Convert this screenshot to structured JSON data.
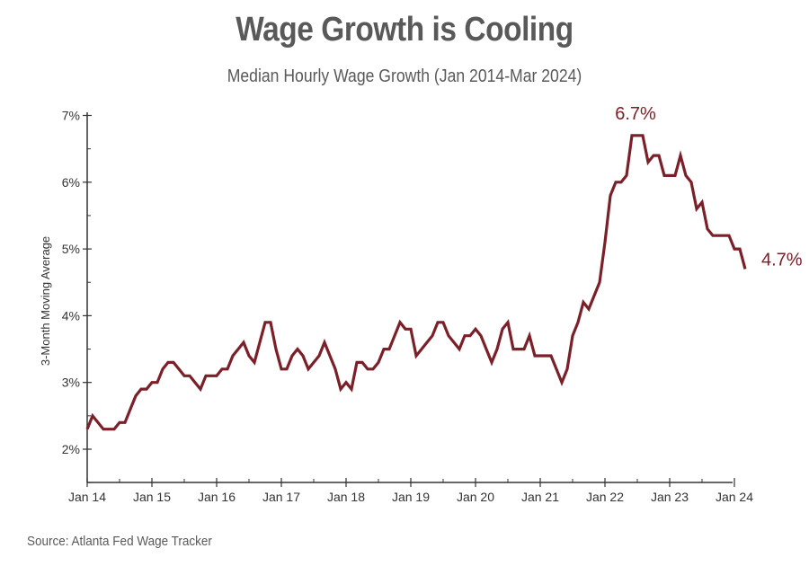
{
  "chart_data": {
    "type": "line",
    "title": "Wage Growth is Cooling",
    "subtitle": "Median Hourly Wage Growth (Jan 2014-Mar 2024)",
    "ylabel": "3-Month Moving Average",
    "xlabel": "",
    "source": "Source: Atlanta Fed Wage Tracker",
    "ylim": [
      1.5,
      7
    ],
    "yticks": [
      2,
      3,
      4,
      5,
      6,
      7
    ],
    "ytick_labels": [
      "2%",
      "3%",
      "4%",
      "5%",
      "6%",
      "7%"
    ],
    "xtick_labels": [
      "Jan 14",
      "Jan 15",
      "Jan 16",
      "Jan 17",
      "Jan 18",
      "Jan 19",
      "Jan 20",
      "Jan 21",
      "Jan 22",
      "Jan 23",
      "Jan 24"
    ],
    "x_start": "Jan 2014",
    "x_end": "Mar 2024",
    "grid": false,
    "line_color": "#7b2029",
    "series": [
      {
        "values": [
          2.3,
          2.5,
          2.4,
          2.3,
          2.3,
          2.3,
          2.4,
          2.4,
          2.6,
          2.8,
          2.9,
          2.9,
          3.0,
          3.0,
          3.2,
          3.3,
          3.3,
          3.2,
          3.1,
          3.1,
          3.0,
          2.9,
          3.1,
          3.1,
          3.1,
          3.2,
          3.2,
          3.4,
          3.5,
          3.6,
          3.4,
          3.3,
          3.6,
          3.9,
          3.9,
          3.5,
          3.2,
          3.2,
          3.4,
          3.5,
          3.4,
          3.2,
          3.3,
          3.4,
          3.6,
          3.4,
          3.2,
          2.9,
          3.0,
          2.9,
          3.3,
          3.3,
          3.2,
          3.2,
          3.3,
          3.5,
          3.5,
          3.7,
          3.9,
          3.8,
          3.8,
          3.4,
          3.5,
          3.6,
          3.7,
          3.9,
          3.9,
          3.7,
          3.6,
          3.5,
          3.7,
          3.7,
          3.8,
          3.7,
          3.5,
          3.3,
          3.5,
          3.8,
          3.9,
          3.5,
          3.5,
          3.5,
          3.7,
          3.4,
          3.4,
          3.4,
          3.4,
          3.2,
          3.0,
          3.2,
          3.7,
          3.9,
          4.2,
          4.1,
          4.3,
          4.5,
          5.1,
          5.8,
          6.0,
          6.0,
          6.1,
          6.7,
          6.7,
          6.7,
          6.3,
          6.4,
          6.4,
          6.1,
          6.1,
          6.1,
          6.4,
          6.1,
          6.0,
          5.6,
          5.7,
          5.3,
          5.2,
          5.2,
          5.2,
          5.2,
          5.0,
          5.0,
          4.7
        ]
      }
    ],
    "annotations": [
      {
        "label": "6.7%",
        "value": 6.7,
        "month_index": 102
      },
      {
        "label": "4.7%",
        "value": 4.7,
        "month_index": 122
      }
    ]
  }
}
